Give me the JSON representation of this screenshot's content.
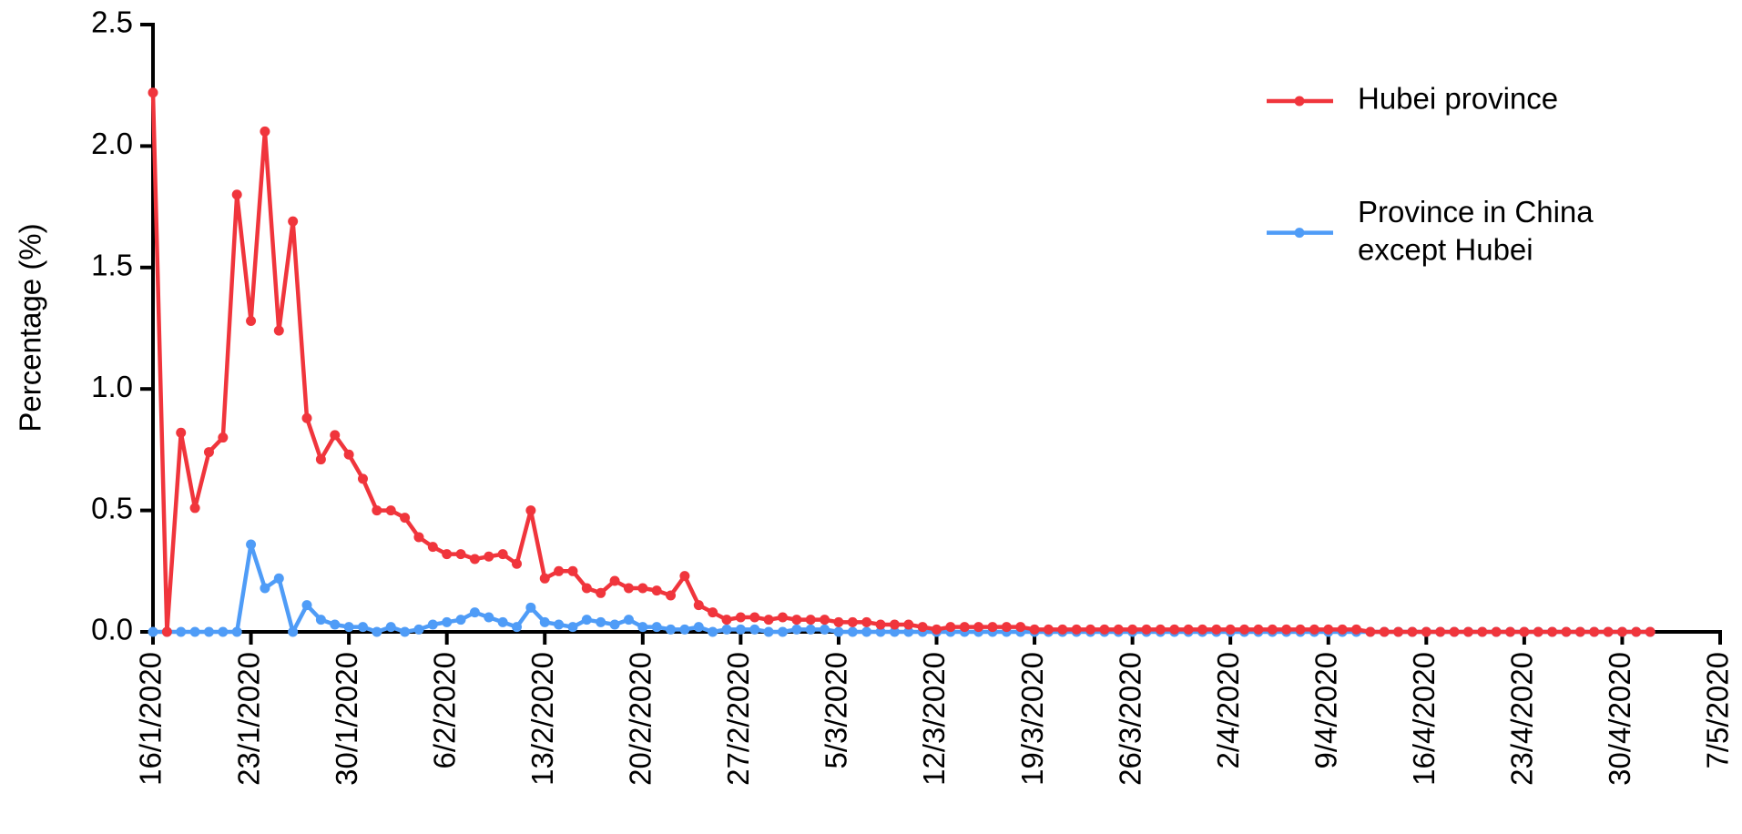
{
  "chart_data": {
    "type": "line",
    "y_label": "Percentage (%)",
    "x": [
      "16/1/2020",
      "17/1/2020",
      "18/1/2020",
      "19/1/2020",
      "20/1/2020",
      "21/1/2020",
      "22/1/2020",
      "23/1/2020",
      "24/1/2020",
      "25/1/2020",
      "26/1/2020",
      "27/1/2020",
      "28/1/2020",
      "29/1/2020",
      "30/1/2020",
      "31/1/2020",
      "1/2/2020",
      "2/2/2020",
      "3/2/2020",
      "4/2/2020",
      "5/2/2020",
      "6/2/2020",
      "7/2/2020",
      "8/2/2020",
      "9/2/2020",
      "10/2/2020",
      "11/2/2020",
      "12/2/2020",
      "13/2/2020",
      "14/2/2020",
      "15/2/2020",
      "16/2/2020",
      "17/2/2020",
      "18/2/2020",
      "19/2/2020",
      "20/2/2020",
      "21/2/2020",
      "22/2/2020",
      "23/2/2020",
      "24/2/2020",
      "25/2/2020",
      "26/2/2020",
      "27/2/2020",
      "28/2/2020",
      "29/2/2020",
      "1/3/2020",
      "2/3/2020",
      "3/3/2020",
      "4/3/2020",
      "5/3/2020",
      "6/3/2020",
      "7/3/2020",
      "8/3/2020",
      "9/3/2020",
      "10/3/2020",
      "11/3/2020",
      "12/3/2020",
      "13/3/2020",
      "14/3/2020",
      "15/3/2020",
      "16/3/2020",
      "17/3/2020",
      "18/3/2020",
      "19/3/2020",
      "20/3/2020",
      "21/3/2020",
      "22/3/2020",
      "23/3/2020",
      "24/3/2020",
      "25/3/2020",
      "26/3/2020",
      "27/3/2020",
      "28/3/2020",
      "29/3/2020",
      "30/3/2020",
      "31/3/2020",
      "1/4/2020",
      "2/4/2020",
      "3/4/2020",
      "4/4/2020",
      "5/4/2020",
      "6/4/2020",
      "7/4/2020",
      "8/4/2020",
      "9/4/2020",
      "10/4/2020",
      "11/4/2020",
      "12/4/2020",
      "13/4/2020",
      "14/4/2020",
      "15/4/2020",
      "16/4/2020",
      "17/4/2020",
      "18/4/2020",
      "19/4/2020",
      "20/4/2020",
      "21/4/2020",
      "22/4/2020",
      "23/4/2020",
      "24/4/2020",
      "25/4/2020",
      "26/4/2020",
      "27/4/2020",
      "28/4/2020",
      "29/4/2020",
      "30/4/2020",
      "1/5/2020",
      "2/5/2020"
    ],
    "series": [
      {
        "name": "Hubei province",
        "color": "#f0353c",
        "values": [
          2.22,
          0,
          0.82,
          0.51,
          0.74,
          0.8,
          1.8,
          1.28,
          2.06,
          1.24,
          1.69,
          0.88,
          0.71,
          0.81,
          0.73,
          0.63,
          0.5,
          0.5,
          0.47,
          0.39,
          0.35,
          0.32,
          0.32,
          0.3,
          0.31,
          0.32,
          0.28,
          0.5,
          0.22,
          0.25,
          0.25,
          0.18,
          0.16,
          0.21,
          0.18,
          0.18,
          0.17,
          0.15,
          0.23,
          0.11,
          0.08,
          0.05,
          0.06,
          0.06,
          0.05,
          0.06,
          0.05,
          0.05,
          0.05,
          0.04,
          0.04,
          0.04,
          0.03,
          0.03,
          0.03,
          0.02,
          0.01,
          0.02,
          0.02,
          0.02,
          0.02,
          0.02,
          0.02,
          0.01,
          0.01,
          0.01,
          0.01,
          0.01,
          0.01,
          0.01,
          0.01,
          0.01,
          0.01,
          0.01,
          0.01,
          0.01,
          0.01,
          0.01,
          0.01,
          0.01,
          0.01,
          0.01,
          0.01,
          0.01,
          0.01,
          0.01,
          0.01,
          0,
          0,
          0,
          0,
          0,
          0,
          0,
          0,
          0,
          0,
          0,
          0,
          0,
          0,
          0,
          0,
          0,
          0,
          0,
          0,
          0
        ]
      },
      {
        "name": "Province in China\nexcept Hubei",
        "color": "#4f9cf7",
        "values": [
          0,
          0,
          0,
          0,
          0,
          0,
          0,
          0.36,
          0.18,
          0.22,
          0,
          0.11,
          0.05,
          0.03,
          0.02,
          0.02,
          0,
          0.02,
          0,
          0.01,
          0.03,
          0.04,
          0.05,
          0.08,
          0.06,
          0.04,
          0.02,
          0.1,
          0.04,
          0.03,
          0.02,
          0.05,
          0.04,
          0.03,
          0.05,
          0.02,
          0.02,
          0.01,
          0.01,
          0.02,
          0,
          0.01,
          0.01,
          0.01,
          0,
          0,
          0.01,
          0.01,
          0.01,
          0,
          0,
          0,
          0,
          0,
          0,
          0,
          0,
          0,
          0,
          0,
          0,
          0,
          0,
          0,
          0,
          0,
          0,
          0,
          0,
          0,
          0,
          0,
          0,
          0,
          0,
          0,
          0,
          0,
          0,
          0,
          0,
          0,
          0,
          0,
          0,
          0,
          0,
          0,
          0,
          0,
          0,
          0,
          0,
          0,
          0,
          0,
          0,
          0,
          0,
          0,
          0,
          0,
          0,
          0,
          0,
          0,
          0,
          0
        ]
      }
    ],
    "xlim": [
      "16/1/2020",
      "7/5/2020"
    ],
    "xticks": [
      "16/1/2020",
      "23/1/2020",
      "30/1/2020",
      "6/2/2020",
      "13/2/2020",
      "20/2/2020",
      "27/2/2020",
      "5/3/2020",
      "12/3/2020",
      "19/3/2020",
      "26/3/2020",
      "2/4/2020",
      "9/4/2020",
      "16/4/2020",
      "23/4/2020",
      "30/4/2020",
      "7/5/2020"
    ],
    "ylim": [
      0,
      2.5
    ],
    "yticks": [
      {
        "value": 0,
        "label": "0.0"
      },
      0.5,
      {
        "value": 1,
        "label": "1.0"
      },
      1.5,
      {
        "value": 2,
        "label": "2.0"
      },
      2.5
    ],
    "legend": "top-right"
  }
}
